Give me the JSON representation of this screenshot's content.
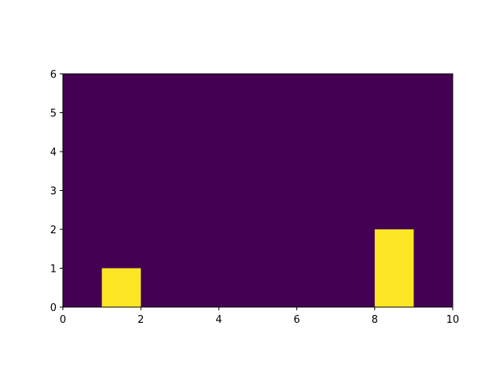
{
  "chart_data": {
    "type": "heatmap",
    "title": "",
    "xlabel": "",
    "ylabel": "",
    "xlim": [
      0,
      10
    ],
    "ylim": [
      0,
      6
    ],
    "x_ticks": [
      0,
      2,
      4,
      6,
      8,
      10
    ],
    "y_ticks": [
      0,
      1,
      2,
      3,
      4,
      5,
      6
    ],
    "x_tick_labels": [
      "0",
      "2",
      "4",
      "6",
      "8",
      "10"
    ],
    "y_tick_labels": [
      "0",
      "1",
      "2",
      "3",
      "4",
      "5",
      "6"
    ],
    "grid": false,
    "legend": "none",
    "background_value": 0,
    "cells": [
      {
        "x_start": 1,
        "x_end": 2,
        "y_start": 0,
        "y_end": 1,
        "value": 1
      },
      {
        "x_start": 8,
        "x_end": 9,
        "y_start": 0,
        "y_end": 2,
        "value": 1
      }
    ],
    "colors": {
      "low": "#440154",
      "high": "#fde725"
    }
  }
}
